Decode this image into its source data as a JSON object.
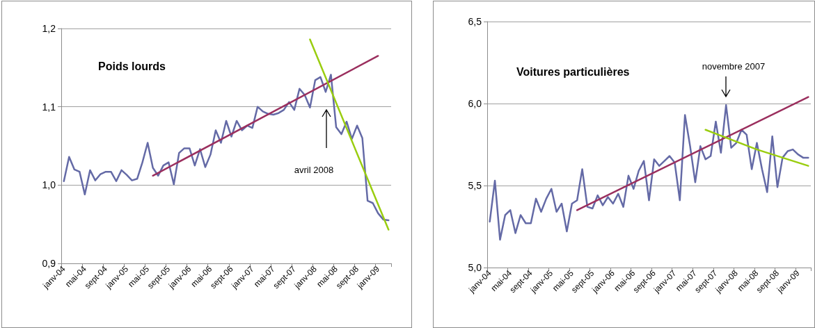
{
  "chart_data": [
    {
      "type": "line",
      "title": "Poids lourds",
      "annotations": [
        "avril 2008"
      ],
      "categories": [
        "janv-04",
        null,
        null,
        null,
        "mai-04",
        null,
        null,
        null,
        "sept-04",
        null,
        null,
        null,
        "janv-05",
        null,
        null,
        null,
        "mai-05",
        null,
        null,
        null,
        "sept-05",
        null,
        null,
        null,
        "janv-06",
        null,
        null,
        null,
        "mai-06",
        null,
        null,
        null,
        "sept-06",
        null,
        null,
        null,
        "janv-07",
        null,
        null,
        null,
        "mai-07",
        null,
        null,
        null,
        "sept-07",
        null,
        null,
        null,
        "janv-08",
        null,
        null,
        null,
        "mai-08",
        null,
        null,
        null,
        "sept-08",
        null,
        null,
        null,
        "janv-09",
        null,
        null
      ],
      "series": [
        {
          "color": "#646aa6",
          "values": [
            1.005,
            1.036,
            1.02,
            1.017,
            0.988,
            1.019,
            1.006,
            1.014,
            1.017,
            1.017,
            1.005,
            1.019,
            1.013,
            1.006,
            1.008,
            1.029,
            1.054,
            1.022,
            1.012,
            1.025,
            1.029,
            1.001,
            1.041,
            1.047,
            1.047,
            1.025,
            1.046,
            1.023,
            1.039,
            1.07,
            1.054,
            1.082,
            1.062,
            1.082,
            1.07,
            1.076,
            1.073,
            1.1,
            1.094,
            1.091,
            1.09,
            1.092,
            1.096,
            1.106,
            1.096,
            1.123,
            1.115,
            1.099,
            1.134,
            1.138,
            1.119,
            1.141,
            1.074,
            1.065,
            1.081,
            1.059,
            1.076,
            1.06,
            0.98,
            0.977,
            0.964,
            0.956,
            0.955
          ]
        },
        {
          "type": "line",
          "color": "#9b2f5e",
          "values": [
            null,
            null,
            null,
            null,
            null,
            null,
            null,
            null,
            null,
            null,
            null,
            null,
            null,
            null,
            null,
            null,
            null,
            1.012,
            null,
            null,
            null,
            null,
            null,
            null,
            null,
            null,
            null,
            null,
            null,
            null,
            null,
            null,
            null,
            null,
            null,
            null,
            null,
            null,
            null,
            null,
            null,
            null,
            null,
            null,
            null,
            null,
            null,
            null,
            null,
            null,
            null,
            null,
            null,
            null,
            null,
            null,
            null,
            null,
            null,
            null,
            1.165,
            null,
            null
          ]
        },
        {
          "type": "line",
          "color": "#9acd10",
          "values": [
            null,
            null,
            null,
            null,
            null,
            null,
            null,
            null,
            null,
            null,
            null,
            null,
            null,
            null,
            null,
            null,
            null,
            null,
            null,
            null,
            null,
            null,
            null,
            null,
            null,
            null,
            null,
            null,
            null,
            null,
            null,
            null,
            null,
            null,
            null,
            null,
            null,
            null,
            null,
            null,
            null,
            null,
            null,
            null,
            null,
            null,
            null,
            1.186,
            null,
            null,
            null,
            null,
            null,
            null,
            null,
            null,
            null,
            null,
            null,
            null,
            null,
            null,
            0.943
          ]
        }
      ],
      "ylim": [
        0.9,
        1.2
      ],
      "yticks": [
        {
          "value": 0.9,
          "label": "0,9"
        },
        {
          "value": 1.0,
          "label": "1,0"
        },
        {
          "value": 1.1,
          "label": "1,1"
        },
        {
          "value": 1.2,
          "label": "1,2"
        }
      ],
      "grid": "y"
    },
    {
      "type": "line",
      "title": "Voitures particulières",
      "annotations": [
        "novembre 2007"
      ],
      "categories": [
        "janv-04",
        null,
        null,
        null,
        "mai-04",
        null,
        null,
        null,
        "sept-04",
        null,
        null,
        null,
        "janv-05",
        null,
        null,
        null,
        "mai-05",
        null,
        null,
        null,
        "sept-05",
        null,
        null,
        null,
        "janv-06",
        null,
        null,
        null,
        "mai-06",
        null,
        null,
        null,
        "sept-06",
        null,
        null,
        null,
        "janv-07",
        null,
        null,
        null,
        "mai-07",
        null,
        null,
        null,
        "sept-07",
        null,
        null,
        null,
        "janv-08",
        null,
        null,
        null,
        "mai-08",
        null,
        null,
        null,
        "sept-08",
        null,
        null,
        null,
        "janv-09",
        null,
        null
      ],
      "series": [
        {
          "color": "#646aa6",
          "values": [
            5.28,
            5.53,
            5.17,
            5.32,
            5.35,
            5.21,
            5.32,
            5.27,
            5.27,
            5.42,
            5.34,
            5.42,
            5.48,
            5.34,
            5.39,
            5.22,
            5.39,
            5.41,
            5.6,
            5.37,
            5.36,
            5.44,
            5.38,
            5.43,
            5.39,
            5.45,
            5.37,
            5.56,
            5.48,
            5.59,
            5.65,
            5.41,
            5.66,
            5.62,
            5.65,
            5.68,
            5.64,
            5.41,
            5.93,
            5.74,
            5.52,
            5.74,
            5.66,
            5.68,
            5.89,
            5.7,
            5.99,
            5.73,
            5.76,
            5.84,
            5.81,
            5.6,
            5.76,
            5.6,
            5.46,
            5.8,
            5.49,
            5.67,
            5.71,
            5.72,
            5.69,
            5.67,
            5.67
          ]
        },
        {
          "type": "line",
          "color": "#9b2f5e",
          "values": [
            null,
            null,
            null,
            null,
            null,
            null,
            null,
            null,
            null,
            null,
            null,
            null,
            null,
            null,
            null,
            null,
            null,
            5.35,
            null,
            null,
            null,
            null,
            null,
            null,
            null,
            null,
            null,
            null,
            null,
            null,
            null,
            null,
            null,
            null,
            null,
            null,
            null,
            null,
            null,
            null,
            null,
            null,
            null,
            null,
            null,
            null,
            null,
            null,
            null,
            null,
            null,
            null,
            null,
            null,
            null,
            null,
            null,
            null,
            null,
            null,
            null,
            null,
            6.04
          ]
        },
        {
          "type": "line",
          "color": "#9acd10",
          "values": [
            null,
            null,
            null,
            null,
            null,
            null,
            null,
            null,
            null,
            null,
            null,
            null,
            null,
            null,
            null,
            null,
            null,
            null,
            null,
            null,
            null,
            null,
            null,
            null,
            null,
            null,
            null,
            null,
            null,
            null,
            null,
            null,
            null,
            null,
            null,
            null,
            null,
            null,
            null,
            null,
            null,
            null,
            5.84,
            null,
            null,
            null,
            null,
            null,
            null,
            null,
            null,
            null,
            5.72,
            null,
            null,
            null,
            null,
            null,
            null,
            null,
            null,
            null,
            5.62
          ]
        }
      ],
      "ylim": [
        5.0,
        6.5
      ],
      "yticks": [
        {
          "value": 5.0,
          "label": "5,0"
        },
        {
          "value": 5.5,
          "label": "5,5"
        },
        {
          "value": 6.0,
          "label": "6,0"
        },
        {
          "value": 6.5,
          "label": "6,5"
        }
      ],
      "grid": "y"
    }
  ]
}
